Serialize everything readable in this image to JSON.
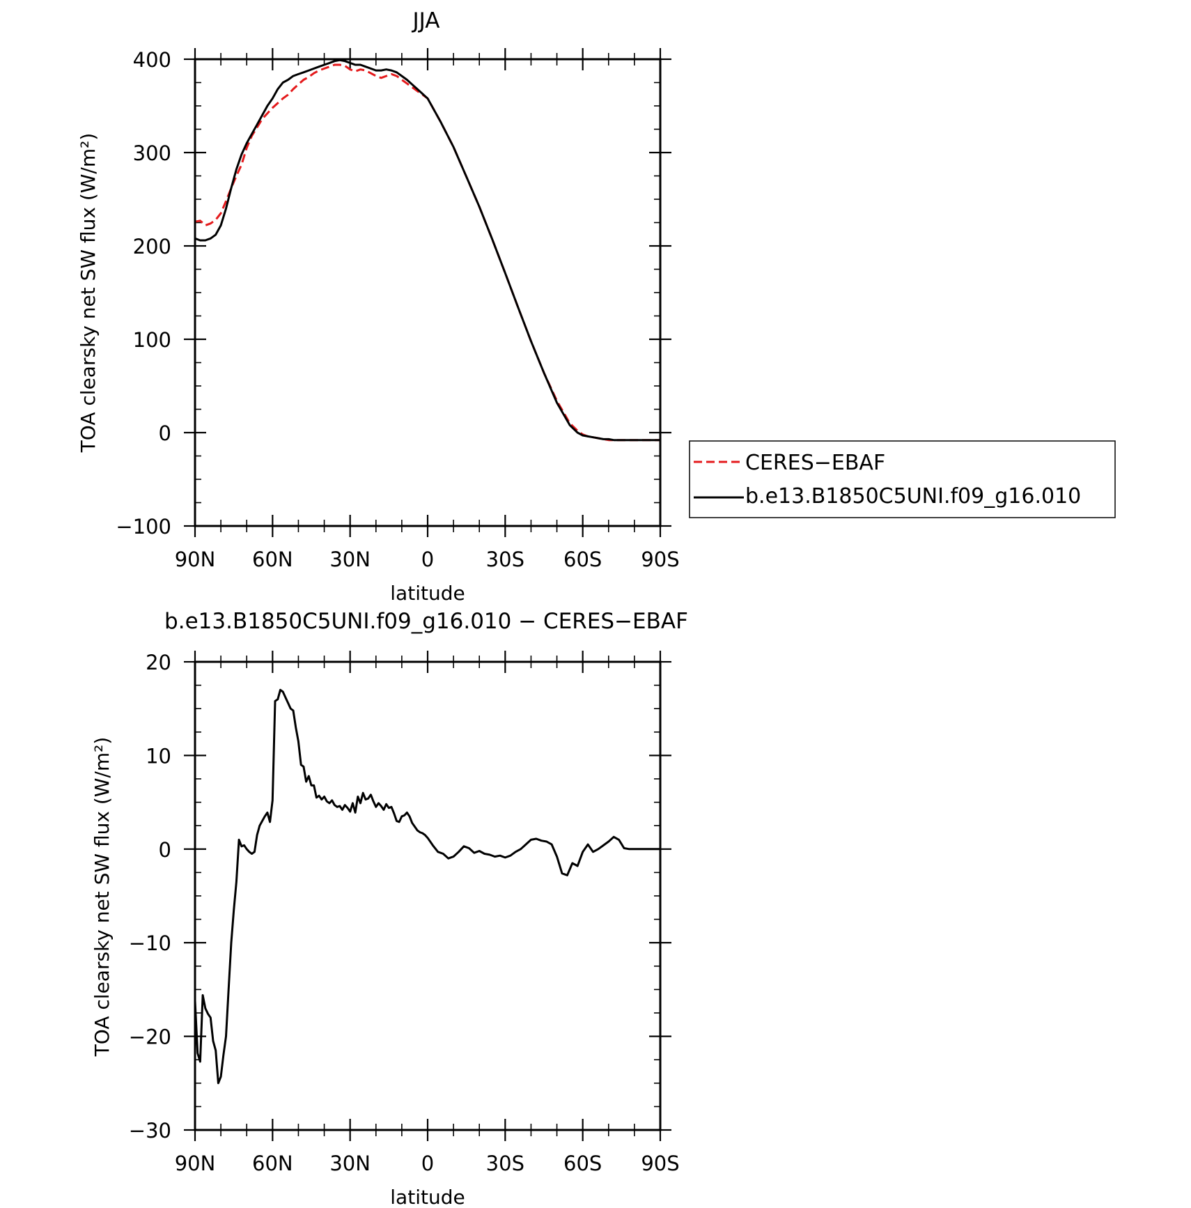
{
  "chart_data": [
    {
      "type": "line",
      "title": "JJA",
      "xlabel": "latitude",
      "ylabel": "TOA clearsky net SW flux (W/m²)",
      "xlim": [
        90,
        -90
      ],
      "ylim": [
        -100,
        400
      ],
      "x_ticks": [
        {
          "value": 90,
          "label": "90N"
        },
        {
          "value": 60,
          "label": "60N"
        },
        {
          "value": 30,
          "label": "30N"
        },
        {
          "value": 0,
          "label": "0"
        },
        {
          "value": -30,
          "label": "30S"
        },
        {
          "value": -60,
          "label": "60S"
        },
        {
          "value": -90,
          "label": "90S"
        }
      ],
      "y_ticks": [
        {
          "value": 400,
          "label": "400"
        },
        {
          "value": 300,
          "label": "300"
        },
        {
          "value": 200,
          "label": "200"
        },
        {
          "value": 100,
          "label": "100"
        },
        {
          "value": 0,
          "label": "0"
        },
        {
          "value": -100,
          "label": "−100"
        }
      ],
      "legend_position": "right",
      "series": [
        {
          "name": "CERES−EBAF",
          "color": "#e41a1c",
          "dash": "dashed",
          "x": [
            90,
            88,
            86,
            84,
            82,
            80,
            78,
            76,
            74,
            72,
            70,
            68,
            66,
            64,
            62,
            60,
            58,
            56,
            54,
            52,
            50,
            48,
            46,
            44,
            42,
            40,
            38,
            36,
            34,
            32,
            30,
            28,
            26,
            24,
            22,
            20,
            18,
            16,
            14,
            12,
            10,
            8,
            6,
            4,
            2,
            0,
            -5,
            -10,
            -15,
            -20,
            -25,
            -30,
            -35,
            -40,
            -45,
            -50,
            -55,
            -58,
            -60,
            -62,
            -64,
            -66,
            -68,
            -70,
            -72,
            -74,
            -76,
            -78,
            -80,
            -82,
            -84,
            -86,
            -88,
            -90
          ],
          "values": [
            226,
            227,
            222,
            224,
            228,
            235,
            248,
            262,
            275,
            287,
            305,
            318,
            327,
            336,
            342,
            348,
            353,
            358,
            362,
            368,
            373,
            378,
            381,
            385,
            388,
            390,
            392,
            394,
            394,
            393,
            389,
            387,
            389,
            388,
            385,
            382,
            380,
            382,
            384,
            382,
            378,
            374,
            370,
            366,
            362,
            358,
            333,
            306,
            274,
            242,
            207,
            171,
            134,
            98,
            64,
            34,
            10,
            2,
            -2,
            -4,
            -5,
            -6,
            -7,
            -8,
            -8,
            -8,
            -8,
            -8,
            -8,
            -8,
            -8,
            -8,
            -8,
            -8
          ]
        },
        {
          "name": "b.e13.B1850C5UNI.f09_g16.010",
          "color": "#000000",
          "dash": "solid",
          "x": [
            90,
            88,
            86,
            84,
            82,
            80,
            78,
            76,
            74,
            72,
            70,
            68,
            66,
            64,
            62,
            60,
            58,
            56,
            54,
            52,
            50,
            48,
            46,
            44,
            42,
            40,
            38,
            36,
            34,
            32,
            30,
            28,
            26,
            24,
            22,
            20,
            18,
            16,
            14,
            12,
            10,
            8,
            6,
            4,
            2,
            0,
            -5,
            -10,
            -15,
            -20,
            -25,
            -30,
            -35,
            -40,
            -45,
            -50,
            -55,
            -58,
            -60,
            -62,
            -64,
            -66,
            -68,
            -70,
            -72,
            -74,
            -76,
            -78,
            -80,
            -82,
            -84,
            -86,
            -88,
            -90
          ],
          "values": [
            208,
            206,
            206,
            208,
            212,
            222,
            240,
            262,
            282,
            298,
            310,
            320,
            330,
            340,
            350,
            358,
            368,
            375,
            378,
            382,
            384,
            386,
            388,
            390,
            392,
            394,
            396,
            398,
            399,
            398,
            396,
            394,
            394,
            392,
            390,
            388,
            388,
            389,
            388,
            386,
            382,
            378,
            373,
            368,
            363,
            358,
            333,
            306,
            274,
            242,
            207,
            171,
            134,
            98,
            64,
            32,
            8,
            0,
            -3,
            -4,
            -5,
            -6,
            -7,
            -7,
            -8,
            -8,
            -8,
            -8,
            -8,
            -8,
            -8,
            -8,
            -8,
            -8
          ]
        }
      ]
    },
    {
      "type": "line",
      "title": "b.e13.B1850C5UNI.f09_g16.010 − CERES−EBAF",
      "xlabel": "latitude",
      "ylabel": "TOA clearsky net SW flux (W/m²)",
      "xlim": [
        90,
        -90
      ],
      "ylim": [
        -30,
        20
      ],
      "x_ticks": [
        {
          "value": 90,
          "label": "90N"
        },
        {
          "value": 60,
          "label": "60N"
        },
        {
          "value": 30,
          "label": "30N"
        },
        {
          "value": 0,
          "label": "0"
        },
        {
          "value": -30,
          "label": "30S"
        },
        {
          "value": -60,
          "label": "60S"
        },
        {
          "value": -90,
          "label": "90S"
        }
      ],
      "y_ticks": [
        {
          "value": 20,
          "label": "20"
        },
        {
          "value": 10,
          "label": "10"
        },
        {
          "value": 0,
          "label": "0"
        },
        {
          "value": -10,
          "label": "−10"
        },
        {
          "value": -20,
          "label": "−20"
        },
        {
          "value": -30,
          "label": "−30"
        }
      ],
      "series": [
        {
          "color": "#000000",
          "dash": "solid",
          "x": [
            90,
            89,
            88,
            87,
            86,
            85,
            84,
            83,
            82,
            81,
            80,
            79,
            78,
            77,
            76,
            75,
            74,
            73,
            72,
            71,
            70,
            69,
            68,
            67,
            66,
            65,
            64,
            63,
            62,
            61,
            60,
            59,
            58,
            57,
            56,
            55,
            54,
            53,
            52,
            51,
            50,
            49,
            48,
            47,
            46,
            45,
            44,
            43,
            42,
            41,
            40,
            39,
            38,
            37,
            36,
            35,
            34,
            33,
            32,
            31,
            30,
            29,
            28,
            27,
            26,
            25,
            24,
            23,
            22,
            21,
            20,
            19,
            18,
            17,
            16,
            15,
            14,
            13,
            12,
            11,
            10,
            9,
            8,
            7,
            6,
            5,
            4,
            3,
            2,
            1,
            0,
            -2,
            -4,
            -6,
            -8,
            -10,
            -12,
            -14,
            -16,
            -18,
            -20,
            -22,
            -24,
            -26,
            -28,
            -30,
            -32,
            -34,
            -36,
            -38,
            -40,
            -42,
            -44,
            -46,
            -48,
            -50,
            -52,
            -54,
            -56,
            -58,
            -60,
            -62,
            -64,
            -66,
            -68,
            -70,
            -72,
            -74,
            -76,
            -78,
            -80,
            -82,
            -84,
            -86,
            -88,
            -90
          ],
          "values": [
            -16.2,
            -21.8,
            -22.7,
            -15.6,
            -17.0,
            -17.6,
            -18.0,
            -20.5,
            -21.5,
            -25.0,
            -24.3,
            -22.0,
            -20.0,
            -15.0,
            -10.0,
            -6.5,
            -3.5,
            1.0,
            0.3,
            0.4,
            0.0,
            -0.3,
            -0.5,
            -0.3,
            1.5,
            2.5,
            3.0,
            3.5,
            3.9,
            2.9,
            5.2,
            15.8,
            16.0,
            17.0,
            16.8,
            16.2,
            15.6,
            15.0,
            14.8,
            13.0,
            11.5,
            9.0,
            8.8,
            7.2,
            7.8,
            6.8,
            6.8,
            5.5,
            5.7,
            5.3,
            5.6,
            5.1,
            4.9,
            5.2,
            4.7,
            4.5,
            4.6,
            4.2,
            4.7,
            4.4,
            4.0,
            4.9,
            3.9,
            5.6,
            4.9,
            6.0,
            5.3,
            5.4,
            5.8,
            5.1,
            4.5,
            4.9,
            4.6,
            4.2,
            4.8,
            4.4,
            4.5,
            3.8,
            3.0,
            2.9,
            3.5,
            3.6,
            3.9,
            3.5,
            2.8,
            2.4,
            2.0,
            1.8,
            1.7,
            1.5,
            1.2,
            0.4,
            -0.3,
            -0.5,
            -1.0,
            -0.8,
            -0.3,
            0.3,
            0.1,
            -0.4,
            -0.2,
            -0.5,
            -0.6,
            -0.8,
            -0.7,
            -0.9,
            -0.7,
            -0.3,
            0.0,
            0.5,
            1.0,
            1.1,
            0.9,
            0.8,
            0.5,
            -0.8,
            -2.6,
            -2.8,
            -1.5,
            -1.8,
            -0.3,
            0.5,
            -0.3,
            0.0,
            0.4,
            0.8,
            1.3,
            1.0,
            0.1,
            0.0,
            0.0,
            0.0,
            0.0,
            0.0,
            0.0,
            0.0
          ]
        }
      ]
    }
  ]
}
